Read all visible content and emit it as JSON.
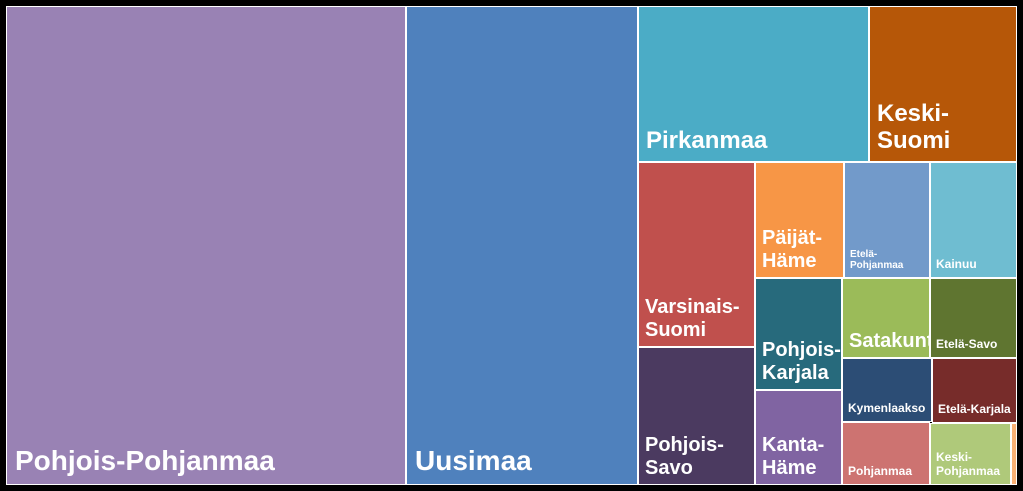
{
  "chart_data": {
    "type": "treemap",
    "title": "",
    "items": [
      {
        "name": "Pohjois-Pohjanmaa",
        "color": "#9982b4"
      },
      {
        "name": "Uusimaa",
        "color": "#4f81bd"
      },
      {
        "name": "Pirkanmaa",
        "color": "#4bacc6"
      },
      {
        "name": "Keski-\nSuomi",
        "color": "#b65708"
      },
      {
        "name": "Varsinais-\nSuomi",
        "color": "#c0504d"
      },
      {
        "name": "Pohjois-\nSavo",
        "color": "#4b3a60"
      },
      {
        "name": "Päijät-\nHäme",
        "color": "#f79646"
      },
      {
        "name": "Pohjois-\nKarjala",
        "color": "#276a7c"
      },
      {
        "name": "Kanta-\nHäme",
        "color": "#8064a2"
      },
      {
        "name": "Etelä-\nPohjanmaa",
        "color": "#729aca"
      },
      {
        "name": "Kainuu",
        "color": "#6fbdd1"
      },
      {
        "name": "Satakunta",
        "color": "#9bbb59"
      },
      {
        "name": "Etelä-Savo",
        "color": "#5f7530"
      },
      {
        "name": "Kymenlaakso",
        "color": "#2c4d75"
      },
      {
        "name": "Etelä-Karjala",
        "color": "#772c2a"
      },
      {
        "name": "Pohjanmaa",
        "color": "#cd7371"
      },
      {
        "name": "Keski-\nPohjanmaa",
        "color": "#afc97a"
      },
      {
        "name": "",
        "color": "#f9b074"
      }
    ]
  }
}
